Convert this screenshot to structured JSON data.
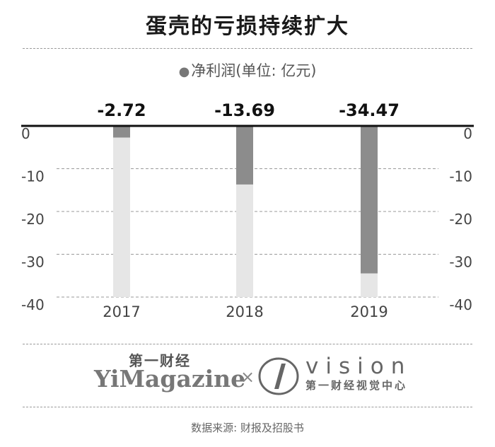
{
  "header": {
    "title": "蛋壳的亏损持续扩大"
  },
  "legend": {
    "marker": "●",
    "label": "净利润(单位: 亿元)"
  },
  "chart_data": {
    "type": "bar",
    "title": "蛋壳的亏损持续扩大",
    "categories": [
      "2017",
      "2018",
      "2019"
    ],
    "series": [
      {
        "name": "净利润(单位: 亿元)",
        "values": [
          -2.72,
          -13.69,
          -34.47
        ]
      }
    ],
    "data_labels": [
      "-2.72",
      "-13.69",
      "-34.47"
    ],
    "yticks": [
      "0",
      "-10",
      "-20",
      "-30",
      "-40"
    ],
    "ylim": [
      -40,
      0
    ],
    "grid": true,
    "colors": {
      "bar": "#8c8c8c",
      "track": "#e6e6e6",
      "axis": "#111111",
      "grid": "#9a9a9a"
    }
  },
  "branding": {
    "left_cn": "第一财经",
    "left_en": "YiMagazine",
    "separator": "×",
    "right_en": "vision",
    "right_cn": "第一财经视觉中心"
  },
  "footer": {
    "source": "数据来源: 财报及招股书"
  }
}
